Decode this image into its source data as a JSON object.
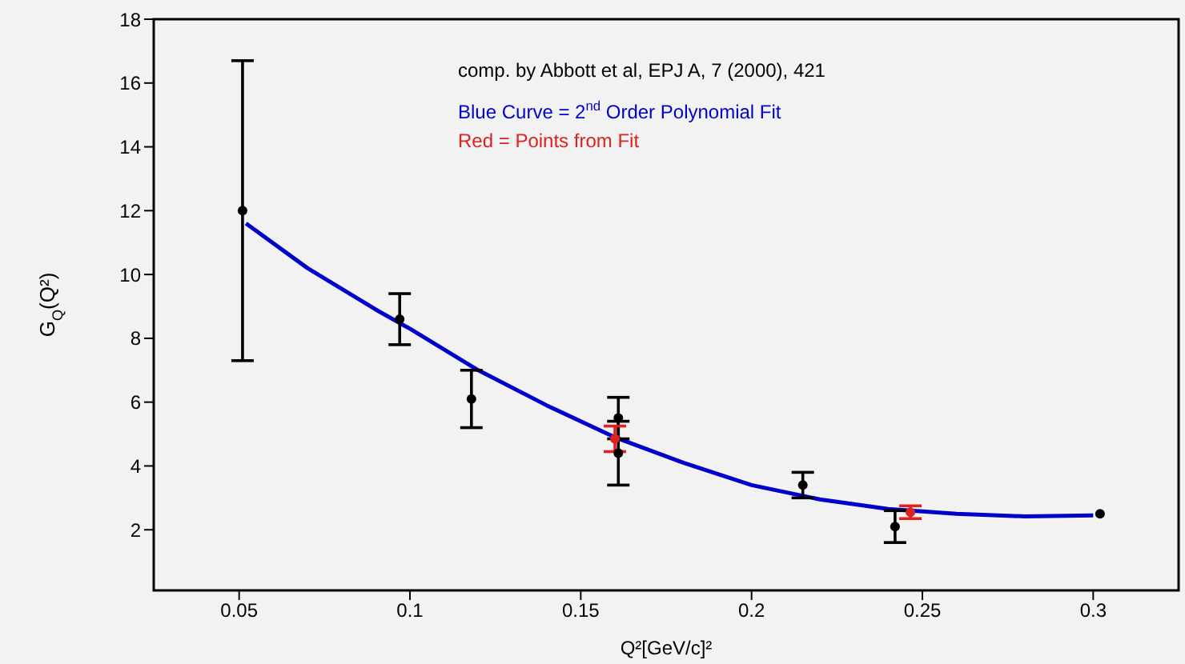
{
  "chart_data": {
    "type": "scatter",
    "xlabel": "Q²[GeV/c]²",
    "ylabel": "G$_{Q}$(Q²)",
    "annotations": [
      "comp. by Abbott et al, EPJ A, 7 (2000), 421",
      "Blue Curve = 2$^{nd}$ Order Polynomial Fit",
      "Red = Points from Fit"
    ],
    "xlim": [
      0.025,
      0.325
    ],
    "xticks": [
      0.05,
      0.1,
      0.15,
      0.2,
      0.25,
      0.3
    ],
    "ylim": [
      0.1,
      18
    ],
    "yticks": [
      2,
      4,
      6,
      8,
      10,
      12,
      14,
      16,
      18
    ],
    "marker": "circle",
    "grid": false,
    "series": [
      {
        "type": "line",
        "color": "#0000cc",
        "x": [
          0.052,
          0.07,
          0.09,
          0.1,
          0.12,
          0.14,
          0.16,
          0.18,
          0.2,
          0.22,
          0.24,
          0.26,
          0.28,
          0.3
        ],
        "values": [
          11.6,
          10.2,
          8.9,
          8.3,
          7.0,
          5.9,
          4.9,
          4.1,
          3.4,
          2.95,
          2.65,
          2.5,
          2.42,
          2.45
        ],
        "marker": "none",
        "line_style": "solid"
      },
      {
        "color": "#000000",
        "x": [
          0.051,
          0.097,
          0.118,
          0.161,
          0.161,
          0.215,
          0.242,
          0.302
        ],
        "values": [
          12.0,
          8.6,
          6.1,
          5.5,
          4.4,
          3.4,
          2.1,
          2.5
        ],
        "errors": [
          4.7,
          0.8,
          0.9,
          0.65,
          1.0,
          0.4,
          0.5,
          null
        ]
      },
      {
        "color": "#dd2222",
        "x": [
          0.16,
          0.2465
        ],
        "values": [
          4.85,
          2.55
        ],
        "errors": [
          0.4,
          0.2
        ]
      }
    ]
  }
}
